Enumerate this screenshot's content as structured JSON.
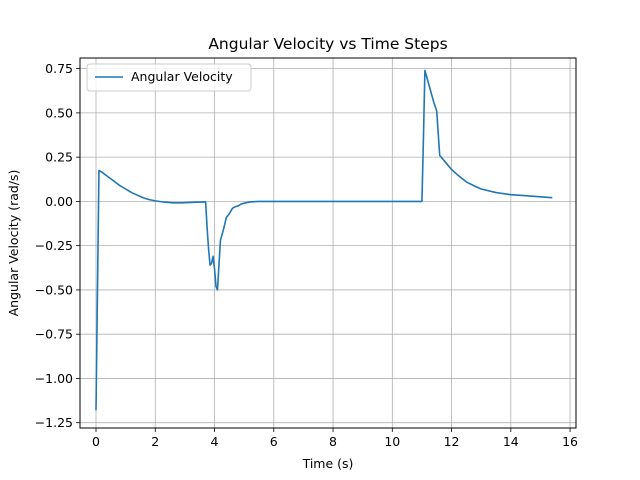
{
  "chart_data": {
    "type": "line",
    "title": "Angular Velocity vs Time Steps",
    "xlabel": "Time (s)",
    "ylabel": "Angular Velocity (rad/s)",
    "xlim": [
      -0.54,
      16.2
    ],
    "ylim": [
      -1.28,
      0.81
    ],
    "xticks": [
      0,
      2,
      4,
      6,
      8,
      10,
      12,
      14,
      16
    ],
    "yticks": [
      -1.25,
      -1.0,
      -0.75,
      -0.5,
      -0.25,
      0.0,
      0.25,
      0.5,
      0.75
    ],
    "xtick_labels": [
      "0",
      "2",
      "4",
      "6",
      "8",
      "10",
      "12",
      "14",
      "16"
    ],
    "ytick_labels": [
      "−1.25",
      "−1.00",
      "−0.75",
      "−0.50",
      "−0.25",
      "0.00",
      "0.25",
      "0.50",
      "0.75"
    ],
    "grid": true,
    "legend": {
      "position": "upper-left"
    },
    "series": [
      {
        "name": "Angular Velocity",
        "color": "#1f77b4",
        "x": [
          0.0,
          0.1,
          0.2,
          0.4,
          0.6,
          0.8,
          1.0,
          1.2,
          1.4,
          1.6,
          1.8,
          2.0,
          2.3,
          2.6,
          2.9,
          3.2,
          3.5,
          3.7,
          3.75,
          3.8,
          3.85,
          3.9,
          3.95,
          4.0,
          4.05,
          4.1,
          4.15,
          4.2,
          4.3,
          4.4,
          4.5,
          4.6,
          4.7,
          4.8,
          4.9,
          5.0,
          5.2,
          5.5,
          6.0,
          7.0,
          8.0,
          9.0,
          10.0,
          11.0,
          11.05,
          11.1,
          11.2,
          11.3,
          11.4,
          11.5,
          11.6,
          11.8,
          12.0,
          12.2,
          12.5,
          12.8,
          13.0,
          13.5,
          14.0,
          14.5,
          15.0,
          15.4
        ],
        "y": [
          -1.18,
          0.175,
          0.165,
          0.14,
          0.115,
          0.09,
          0.07,
          0.05,
          0.035,
          0.02,
          0.01,
          0.003,
          -0.004,
          -0.008,
          -0.008,
          -0.006,
          -0.004,
          -0.003,
          -0.15,
          -0.27,
          -0.36,
          -0.35,
          -0.31,
          -0.38,
          -0.48,
          -0.5,
          -0.36,
          -0.22,
          -0.16,
          -0.09,
          -0.07,
          -0.04,
          -0.03,
          -0.025,
          -0.015,
          -0.01,
          -0.003,
          0.0,
          0.0,
          0.0,
          0.0,
          0.0,
          0.0,
          0.0,
          0.35,
          0.74,
          0.68,
          0.62,
          0.56,
          0.51,
          0.26,
          0.22,
          0.18,
          0.15,
          0.11,
          0.085,
          0.07,
          0.05,
          0.038,
          0.032,
          0.026,
          0.021
        ]
      }
    ]
  }
}
